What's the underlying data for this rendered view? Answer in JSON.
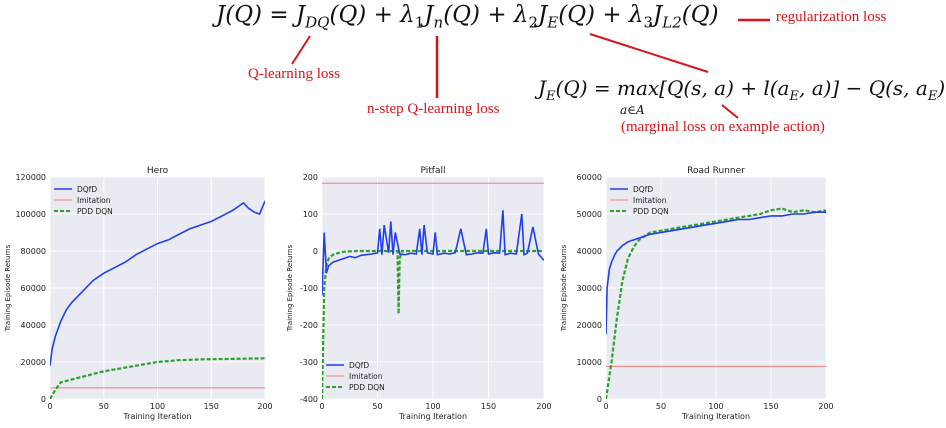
{
  "equations": {
    "main": "J(Q) = J DQ(Q) + λ₁Jₙ(Q) + λ₂Jₑ(Q) + λ₃Jₗ₂(Q)",
    "main_parts": {
      "lhs": "J(Q) = J",
      "dq_sub": "DQ",
      "t1": "(Q) + λ",
      "l1": "1",
      "t2": "J",
      "n_sub": "n",
      "t3": "(Q) + λ",
      "l2": "2",
      "t4": "J",
      "e_sub": "E",
      "t5": "(Q) + λ",
      "l3": "3",
      "t6": "J",
      "l2_sub": "L2",
      "t7": "(Q)"
    },
    "margin_parts": {
      "t1": "J",
      "e_sub": "E",
      "t2": "(Q) = max[Q(s, a) + l(a",
      "ae_sub": "E",
      "t3": ", a)] − Q(s, a",
      "ae2_sub": "E",
      "t4": ")",
      "under": "a∈A"
    }
  },
  "annotations": {
    "regularization": "regularization loss",
    "q_learning": "Q-learning loss",
    "n_step": "n-step Q-learning loss",
    "marginal": "(marginal loss on example action)"
  },
  "colors": {
    "annotation_red": "#d8141a",
    "dqfd": "#1f3ff0",
    "imitation": "#f08080",
    "pdd_dqn": "#2ea02c",
    "plot_bg": "#eaeaf2"
  },
  "chart_data": [
    {
      "type": "line",
      "title": "Hero",
      "xlabel": "Training Iteration",
      "ylabel": "Training Episode Returns",
      "xlim": [
        0,
        200
      ],
      "ylim": [
        0,
        120000
      ],
      "xticks": [
        0,
        50,
        100,
        150,
        200
      ],
      "yticks": [
        0,
        20000,
        40000,
        60000,
        80000,
        100000,
        120000
      ],
      "legend_position": "top-left",
      "grid": true,
      "series": [
        {
          "name": "DQfD",
          "style": "solid",
          "color": "#1f3ff0",
          "x": [
            0,
            2,
            5,
            10,
            15,
            20,
            30,
            40,
            50,
            60,
            70,
            80,
            90,
            100,
            110,
            120,
            130,
            140,
            150,
            160,
            170,
            180,
            185,
            190,
            195,
            200
          ],
          "y": [
            18000,
            27000,
            34000,
            42000,
            48000,
            52000,
            58000,
            64000,
            68000,
            71000,
            74000,
            78000,
            81000,
            84000,
            86000,
            89000,
            92000,
            94000,
            96000,
            99000,
            102000,
            106000,
            103000,
            101000,
            100000,
            107000
          ]
        },
        {
          "name": "Imitation",
          "style": "solid",
          "color": "#f08080",
          "x": [
            0,
            200
          ],
          "y": [
            6000,
            6000
          ]
        },
        {
          "name": "PDD DQN",
          "style": "dashed",
          "color": "#2ea02c",
          "x": [
            0,
            5,
            10,
            20,
            30,
            40,
            50,
            60,
            70,
            80,
            90,
            100,
            110,
            120,
            130,
            140,
            150,
            160,
            170,
            180,
            190,
            200
          ],
          "y": [
            0,
            5000,
            9000,
            10500,
            12000,
            13500,
            15000,
            16000,
            17000,
            18000,
            19000,
            20000,
            20500,
            21000,
            21200,
            21400,
            21500,
            21600,
            21700,
            21800,
            21900,
            22000
          ]
        }
      ]
    },
    {
      "type": "line",
      "title": "Pitfall",
      "xlabel": "Training Iteration",
      "ylabel": "Training Episode Returns",
      "xlim": [
        0,
        200
      ],
      "ylim": [
        -400,
        200
      ],
      "xticks": [
        0,
        50,
        100,
        150,
        200
      ],
      "yticks": [
        -400,
        -300,
        -200,
        -100,
        0,
        100,
        200
      ],
      "legend_position": "bottom-left",
      "grid": true,
      "series": [
        {
          "name": "DQfD",
          "style": "solid",
          "color": "#1f3ff0",
          "x": [
            0,
            2,
            4,
            6,
            10,
            15,
            20,
            25,
            30,
            35,
            40,
            45,
            50,
            52,
            54,
            56,
            60,
            62,
            64,
            66,
            70,
            75,
            80,
            85,
            88,
            90,
            92,
            95,
            100,
            102,
            104,
            110,
            115,
            120,
            125,
            130,
            135,
            140,
            145,
            148,
            150,
            155,
            160,
            163,
            165,
            170,
            175,
            180,
            182,
            185,
            190,
            195,
            200
          ],
          "y": [
            -120,
            50,
            -60,
            -40,
            -30,
            -25,
            -20,
            -15,
            -18,
            -12,
            -10,
            -8,
            -5,
            60,
            -10,
            70,
            -5,
            80,
            -10,
            50,
            -8,
            -10,
            -6,
            -8,
            60,
            -10,
            70,
            -5,
            -8,
            50,
            -10,
            -6,
            -8,
            -5,
            60,
            -10,
            -8,
            -5,
            -6,
            60,
            -8,
            -5,
            -6,
            110,
            -10,
            -6,
            -8,
            100,
            -10,
            -6,
            65,
            -8,
            -25
          ]
        },
        {
          "name": "Imitation",
          "style": "solid",
          "color": "#f08080",
          "x": [
            0,
            200
          ],
          "y": [
            183,
            183
          ]
        },
        {
          "name": "PDD DQN",
          "style": "dashed",
          "color": "#2ea02c",
          "x": [
            0,
            1,
            2,
            4,
            6,
            10,
            15,
            20,
            30,
            40,
            50,
            60,
            65,
            68,
            69,
            70,
            72,
            80,
            100,
            120,
            140,
            160,
            180,
            200
          ],
          "y": [
            -400,
            -250,
            -100,
            -40,
            -20,
            -10,
            -5,
            -2,
            0,
            0,
            0,
            0,
            0,
            0,
            -170,
            -20,
            0,
            0,
            0,
            0,
            0,
            0,
            0,
            0
          ]
        }
      ]
    },
    {
      "type": "line",
      "title": "Road Runner",
      "xlabel": "Training Iteration",
      "ylabel": "Training Episode Returns",
      "xlim": [
        0,
        200
      ],
      "ylim": [
        0,
        60000
      ],
      "xticks": [
        0,
        50,
        100,
        150,
        200
      ],
      "yticks": [
        0,
        10000,
        20000,
        30000,
        40000,
        50000,
        60000
      ],
      "legend_position": "top-left",
      "grid": true,
      "series": [
        {
          "name": "DQfD",
          "style": "solid",
          "color": "#1f3ff0",
          "x": [
            0,
            1,
            3,
            5,
            8,
            10,
            15,
            20,
            30,
            40,
            50,
            60,
            70,
            80,
            90,
            100,
            110,
            120,
            130,
            140,
            150,
            160,
            170,
            180,
            190,
            200
          ],
          "y": [
            17500,
            30000,
            35000,
            37000,
            39000,
            40000,
            41500,
            42500,
            43500,
            44500,
            45000,
            45500,
            46000,
            46500,
            47000,
            47500,
            48000,
            48500,
            48500,
            49000,
            49500,
            49500,
            50000,
            50000,
            50500,
            50500
          ]
        },
        {
          "name": "Imitation",
          "style": "solid",
          "color": "#f08080",
          "x": [
            0,
            200
          ],
          "y": [
            8800,
            8800
          ]
        },
        {
          "name": "PDD DQN",
          "style": "dashed",
          "color": "#2ea02c",
          "x": [
            0,
            5,
            10,
            15,
            20,
            25,
            30,
            35,
            40,
            50,
            60,
            70,
            80,
            90,
            100,
            110,
            120,
            130,
            140,
            150,
            160,
            170,
            180,
            190,
            200
          ],
          "y": [
            0,
            10000,
            22000,
            32000,
            38000,
            41000,
            43000,
            44000,
            45000,
            45500,
            46000,
            46500,
            47000,
            47500,
            48000,
            48500,
            49000,
            49500,
            50000,
            51000,
            51500,
            50500,
            51000,
            50500,
            51000
          ]
        }
      ]
    }
  ]
}
